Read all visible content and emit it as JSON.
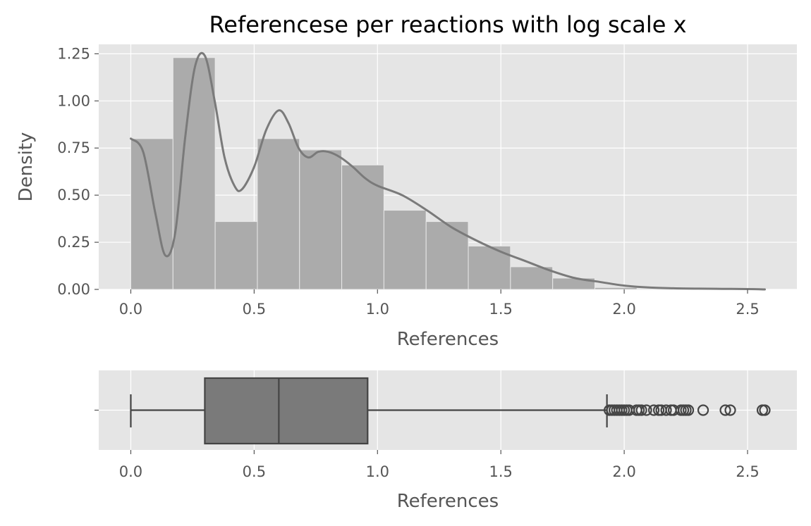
{
  "chart_data": [
    {
      "type": "bar",
      "subtype": "histogram-with-kde",
      "title": "Referencese per reactions with log scale x",
      "xlabel": "References",
      "ylabel": "Density",
      "xlim": [
        -0.13,
        2.7
      ],
      "ylim": [
        0,
        1.3
      ],
      "xticks": [
        "0.0",
        "0.5",
        "1.0",
        "1.5",
        "2.0",
        "2.5"
      ],
      "yticks": [
        "0.00",
        "0.25",
        "0.50",
        "0.75",
        "1.00",
        "1.25"
      ],
      "grid": true,
      "bins": [
        {
          "x0": 0.0,
          "x1": 0.171,
          "density": 0.8
        },
        {
          "x0": 0.171,
          "x1": 0.342,
          "density": 1.23
        },
        {
          "x0": 0.342,
          "x1": 0.513,
          "density": 0.36
        },
        {
          "x0": 0.513,
          "x1": 0.684,
          "density": 0.8
        },
        {
          "x0": 0.684,
          "x1": 0.855,
          "density": 0.74
        },
        {
          "x0": 0.855,
          "x1": 1.026,
          "density": 0.66
        },
        {
          "x0": 1.026,
          "x1": 1.197,
          "density": 0.42
        },
        {
          "x0": 1.197,
          "x1": 1.368,
          "density": 0.36
        },
        {
          "x0": 1.368,
          "x1": 1.539,
          "density": 0.23
        },
        {
          "x0": 1.539,
          "x1": 1.71,
          "density": 0.12
        },
        {
          "x0": 1.71,
          "x1": 1.881,
          "density": 0.06
        },
        {
          "x0": 1.881,
          "x1": 2.052,
          "density": 0.01
        },
        {
          "x0": 2.052,
          "x1": 2.223,
          "density": 0.003
        },
        {
          "x0": 2.223,
          "x1": 2.394,
          "density": 0.003
        },
        {
          "x0": 2.394,
          "x1": 2.565,
          "density": 0.003
        }
      ],
      "kde": {
        "x": [
          0.0,
          0.05,
          0.1,
          0.14,
          0.18,
          0.22,
          0.26,
          0.3,
          0.34,
          0.38,
          0.42,
          0.45,
          0.5,
          0.55,
          0.6,
          0.64,
          0.68,
          0.72,
          0.76,
          0.8,
          0.85,
          0.9,
          0.95,
          1.0,
          1.1,
          1.2,
          1.3,
          1.4,
          1.5,
          1.6,
          1.7,
          1.8,
          1.9,
          2.0,
          2.1,
          2.2,
          2.3,
          2.4,
          2.5,
          2.57
        ],
        "y": [
          0.8,
          0.73,
          0.4,
          0.18,
          0.3,
          0.8,
          1.18,
          1.24,
          1.0,
          0.7,
          0.55,
          0.53,
          0.65,
          0.85,
          0.95,
          0.88,
          0.75,
          0.7,
          0.73,
          0.73,
          0.7,
          0.65,
          0.59,
          0.55,
          0.5,
          0.42,
          0.33,
          0.26,
          0.2,
          0.15,
          0.1,
          0.06,
          0.04,
          0.02,
          0.01,
          0.006,
          0.004,
          0.003,
          0.002,
          0.0
        ]
      },
      "colors": {
        "bar": "#ababab",
        "kde": "#7a7a7a"
      }
    },
    {
      "type": "boxplot",
      "xlabel": "References",
      "ylabel": "",
      "xlim": [
        -0.13,
        2.7
      ],
      "xticks": [
        "0.0",
        "0.5",
        "1.0",
        "1.5",
        "2.0",
        "2.5"
      ],
      "yticks": [
        ""
      ],
      "grid": true,
      "stats": {
        "whisker_low": 0.0,
        "q1": 0.3,
        "median": 0.6,
        "q3": 0.96,
        "whisker_high": 1.93
      },
      "outliers": [
        1.94,
        1.95,
        1.96,
        1.97,
        1.98,
        1.99,
        2.0,
        2.01,
        2.02,
        2.05,
        2.06,
        2.07,
        2.09,
        2.12,
        2.14,
        2.15,
        2.17,
        2.19,
        2.2,
        2.23,
        2.24,
        2.25,
        2.26,
        2.32,
        2.41,
        2.43,
        2.56,
        2.57
      ],
      "colors": {
        "box": "#7a7a7a",
        "line": "#444444"
      }
    }
  ]
}
